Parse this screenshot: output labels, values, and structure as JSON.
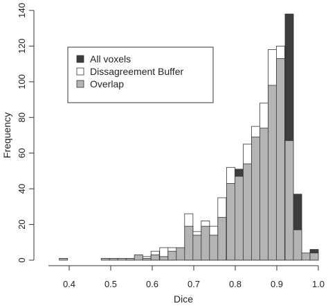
{
  "chart_data": {
    "type": "bar",
    "title": "",
    "xlabel": "Dice",
    "ylabel": "Frequency",
    "xlim": [
      0.35,
      1.0
    ],
    "ylim": [
      0,
      140
    ],
    "xticks": [
      "0.4",
      "0.5",
      "0.6",
      "0.7",
      "0.8",
      "0.9",
      "1.0"
    ],
    "yticks": [
      "0",
      "20",
      "40",
      "60",
      "80",
      "100",
      "120",
      "140"
    ],
    "bin_width": 0.0201,
    "grid": false,
    "legend_position": "top-left",
    "series": [
      {
        "name": "All voxels",
        "color": "#3d3d3d",
        "bins": [
          {
            "x0": 0.799,
            "value": 51
          },
          {
            "x0": 0.92,
            "value": 138
          },
          {
            "x0": 0.94,
            "value": 37
          },
          {
            "x0": 0.98,
            "value": 6
          }
        ]
      },
      {
        "name": "Dissagreement Buffer",
        "color": "#ffffff",
        "bins": [
          {
            "x0": 0.537,
            "value": 1
          },
          {
            "x0": 0.577,
            "value": 2
          },
          {
            "x0": 0.597,
            "value": 5
          },
          {
            "x0": 0.618,
            "value": 7
          },
          {
            "x0": 0.638,
            "value": 7
          },
          {
            "x0": 0.678,
            "value": 26
          },
          {
            "x0": 0.698,
            "value": 16
          },
          {
            "x0": 0.718,
            "value": 22
          },
          {
            "x0": 0.738,
            "value": 19
          },
          {
            "x0": 0.758,
            "value": 35
          },
          {
            "x0": 0.779,
            "value": 52
          },
          {
            "x0": 0.819,
            "value": 65
          },
          {
            "x0": 0.839,
            "value": 75
          },
          {
            "x0": 0.859,
            "value": 88
          },
          {
            "x0": 0.879,
            "value": 118
          },
          {
            "x0": 0.899,
            "value": 120
          }
        ]
      },
      {
        "name": "Overlap",
        "color": "#b4b4b4",
        "bins": [
          {
            "x0": 0.376,
            "value": 1
          },
          {
            "x0": 0.477,
            "value": 1
          },
          {
            "x0": 0.497,
            "value": 1
          },
          {
            "x0": 0.517,
            "value": 1
          },
          {
            "x0": 0.537,
            "value": 1
          },
          {
            "x0": 0.557,
            "value": 3
          },
          {
            "x0": 0.577,
            "value": 1
          },
          {
            "x0": 0.597,
            "value": 3
          },
          {
            "x0": 0.618,
            "value": 2
          },
          {
            "x0": 0.638,
            "value": 5
          },
          {
            "x0": 0.658,
            "value": 7
          },
          {
            "x0": 0.678,
            "value": 19
          },
          {
            "x0": 0.698,
            "value": 14
          },
          {
            "x0": 0.718,
            "value": 19
          },
          {
            "x0": 0.738,
            "value": 14
          },
          {
            "x0": 0.758,
            "value": 24
          },
          {
            "x0": 0.779,
            "value": 43
          },
          {
            "x0": 0.799,
            "value": 47
          },
          {
            "x0": 0.819,
            "value": 54
          },
          {
            "x0": 0.839,
            "value": 69
          },
          {
            "x0": 0.859,
            "value": 74
          },
          {
            "x0": 0.879,
            "value": 98
          },
          {
            "x0": 0.899,
            "value": 113
          },
          {
            "x0": 0.92,
            "value": 67
          },
          {
            "x0": 0.94,
            "value": 17
          },
          {
            "x0": 0.96,
            "value": 4
          },
          {
            "x0": 0.98,
            "value": 4
          }
        ]
      }
    ]
  }
}
